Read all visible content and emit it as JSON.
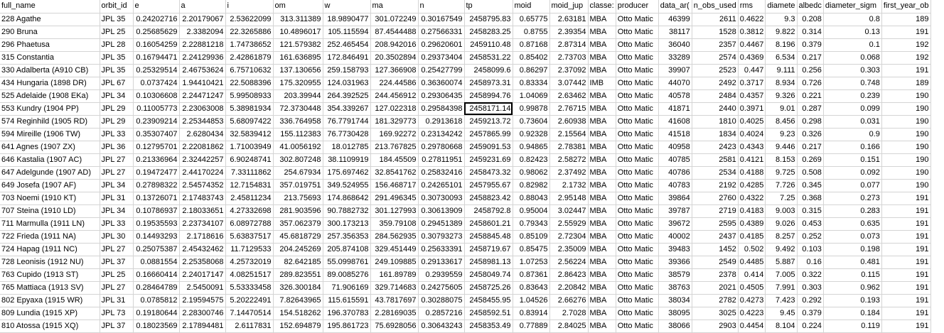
{
  "sheet": {
    "headers": [
      "full_name",
      "orbit_id",
      "e",
      "a",
      "i",
      "om",
      "w",
      "ma",
      "n",
      "tp",
      "moid",
      "moid_jup",
      "classes",
      "producer",
      "data_arc",
      "n_obs_used",
      "rms",
      "diameter",
      "albedo",
      "diameter_sigma",
      "first_year_obs"
    ],
    "header_display": [
      "full_name",
      "orbit_id",
      "e",
      "a",
      "i",
      "om",
      "w",
      "ma",
      "n",
      "tp",
      "moid",
      "moid_jup",
      "classe:",
      "producer",
      "data_ar(",
      "n_obs_used",
      "rms",
      "diamete",
      "albedc",
      "diameter_sigm",
      "first_year_ob"
    ],
    "selected_cell": {
      "row": 7,
      "col": 9
    },
    "rows": [
      [
        "228 Agathe",
        "JPL 35",
        "0.24202716",
        "2.20179067",
        "2.53622099",
        "313.311389",
        "18.9890477",
        "301.072249",
        "0.30167549",
        "2458795.83",
        "0.65775",
        "2.63181",
        "MBA",
        "Otto Matic",
        "46399",
        "2611",
        "0.4622",
        "9.3",
        "0.208",
        "0.8",
        "189"
      ],
      [
        "290 Bruna",
        "JPL 25",
        "0.25685629",
        "2.3382094",
        "22.3265886",
        "10.4896017",
        "105.115594",
        "87.4544488",
        "0.27566331",
        "2458283.25",
        "0.8755",
        "2.39354",
        "MBA",
        "Otto Matic",
        "38117",
        "1528",
        "0.3812",
        "9.822",
        "0.314",
        "0.13",
        "191"
      ],
      [
        "296 Phaetusa",
        "JPL 28",
        "0.16054259",
        "2.22881218",
        "1.74738652",
        "121.579382",
        "252.465454",
        "208.942016",
        "0.29620601",
        "2459110.48",
        "0.87168",
        "2.87314",
        "MBA",
        "Otto Matic",
        "36040",
        "2357",
        "0.4467",
        "8.196",
        "0.379",
        "0.1",
        "192"
      ],
      [
        "315 Constantia",
        "JPL 35",
        "0.16794471",
        "2.24129936",
        "2.42861879",
        "161.636895",
        "172.846491",
        "20.3502894",
        "0.29373404",
        "2458531.22",
        "0.85402",
        "2.73703",
        "MBA",
        "Otto Matic",
        "33289",
        "2574",
        "0.4369",
        "6.534",
        "0.217",
        "0.068",
        "192"
      ],
      [
        "330 Adalberta (A910 CB)",
        "JPL 35",
        "0.25329514",
        "2.46753624",
        "6.75710632",
        "137.130656",
        "259.158793",
        "127.366908",
        "0.25427799",
        "2458099.6",
        "0.86297",
        "2.37092",
        "MBA",
        "Otto Matic",
        "39907",
        "2523",
        "0.447",
        "9.111",
        "0.256",
        "0.303",
        "191"
      ],
      [
        "434 Hungaria (1898 DR)",
        "JPL 67",
        "0.0737424",
        "1.94410421",
        "22.5088396",
        "175.320955",
        "124.031963",
        "224.44586",
        "0.36360074",
        "2458973.31",
        "0.83334",
        "3.07442",
        "IMB",
        "Otto Matic",
        "44070",
        "2492",
        "0.3717",
        "8.934",
        "0.726",
        "0.748",
        "189"
      ],
      [
        "525 Adelaide (1908 EKa)",
        "JPL 34",
        "0.10306608",
        "2.24471247",
        "5.99508933",
        "203.39944",
        "264.392525",
        "244.456912",
        "0.29306435",
        "2458994.76",
        "1.04069",
        "2.63462",
        "MBA",
        "Otto Matic",
        "40578",
        "2484",
        "0.4357",
        "9.326",
        "0.221",
        "0.239",
        "190"
      ],
      [
        "553 Kundry (1904 PP)",
        "JPL 29",
        "0.11005773",
        "2.23063008",
        "5.38981934",
        "72.3730448",
        "354.339267",
        "127.022318",
        "0.29584398",
        "2458171.14",
        "0.99878",
        "2.76715",
        "MBA",
        "Otto Matic",
        "41871",
        "2440",
        "0.3971",
        "9.01",
        "0.287",
        "0.099",
        "190"
      ],
      [
        "574 Reginhild (1905 RD)",
        "JPL 29",
        "0.23909214",
        "2.25344853",
        "5.68097422",
        "336.764958",
        "76.7791744",
        "181.329773",
        "0.2913618",
        "2459213.72",
        "0.73604",
        "2.60938",
        "MBA",
        "Otto Matic",
        "41608",
        "1810",
        "0.4025",
        "8.456",
        "0.298",
        "0.031",
        "190"
      ],
      [
        "594 Mireille (1906 TW)",
        "JPL 33",
        "0.35307407",
        "2.6280434",
        "32.5839412",
        "155.112383",
        "76.7730428",
        "169.92272",
        "0.23134242",
        "2457865.99",
        "0.92328",
        "2.15564",
        "MBA",
        "Otto Matic",
        "41518",
        "1834",
        "0.4024",
        "9.23",
        "0.326",
        "0.9",
        "190"
      ],
      [
        "641 Agnes (1907 ZX)",
        "JPL 36",
        "0.12795701",
        "2.22081862",
        "1.71003949",
        "41.0056192",
        "18.012785",
        "213.767825",
        "0.29780668",
        "2459091.53",
        "0.94865",
        "2.78381",
        "MBA",
        "Otto Matic",
        "40958",
        "2423",
        "0.4343",
        "9.446",
        "0.217",
        "0.166",
        "190"
      ],
      [
        "646 Kastalia (1907 AC)",
        "JPL 27",
        "0.21336964",
        "2.32442257",
        "6.90248741",
        "302.807248",
        "38.1109919",
        "184.45509",
        "0.27811951",
        "2459231.69",
        "0.82423",
        "2.58272",
        "MBA",
        "Otto Matic",
        "40785",
        "2581",
        "0.4121",
        "8.153",
        "0.269",
        "0.151",
        "190"
      ],
      [
        "647 Adelgunde (1907 AD)",
        "JPL 27",
        "0.19472477",
        "2.44170224",
        "7.33111862",
        "254.67934",
        "175.697462",
        "32.8541762",
        "0.25832416",
        "2458473.32",
        "0.98062",
        "2.37492",
        "MBA",
        "Otto Matic",
        "40786",
        "2534",
        "0.4188",
        "9.725",
        "0.508",
        "0.092",
        "190"
      ],
      [
        "649 Josefa (1907 AF)",
        "JPL 34",
        "0.27898322",
        "2.54574352",
        "12.7154831",
        "357.019751",
        "349.524955",
        "156.468717",
        "0.24265101",
        "2457955.67",
        "0.82982",
        "2.1732",
        "MBA",
        "Otto Matic",
        "40783",
        "2192",
        "0.4285",
        "7.726",
        "0.345",
        "0.077",
        "190"
      ],
      [
        "703 Noemi (1910 KT)",
        "JPL 31",
        "0.13726071",
        "2.17483743",
        "2.45811234",
        "213.75693",
        "174.868642",
        "291.496345",
        "0.30730093",
        "2458823.42",
        "0.88043",
        "2.95148",
        "MBA",
        "Otto Matic",
        "39864",
        "2760",
        "0.4322",
        "7.25",
        "0.368",
        "0.273",
        "191"
      ],
      [
        "707 Steina (1910 LD)",
        "JPL 34",
        "0.10786937",
        "2.18033651",
        "4.27332698",
        "281.903596",
        "90.7882732",
        "301.127993",
        "0.30613909",
        "2458792.8",
        "0.95004",
        "3.02447",
        "MBA",
        "Otto Matic",
        "39787",
        "2719",
        "0.4183",
        "9.003",
        "0.315",
        "0.283",
        "191"
      ],
      [
        "711 Marmulla (1911 LN)",
        "JPL 33",
        "0.19535593",
        "2.23734107",
        "6.08972788",
        "357.062379",
        "300.173213",
        "359.79108",
        "0.29451389",
        "2458601.21",
        "0.79343",
        "2.55929",
        "MBA",
        "Otto Matic",
        "39672",
        "2595",
        "0.4389",
        "9.026",
        "0.453",
        "0.635",
        "191"
      ],
      [
        "722 Frieda (1911 NA)",
        "JPL 30",
        "0.14493293",
        "2.1718616",
        "5.63837517",
        "45.6818729",
        "257.356353",
        "284.562935",
        "0.30793273",
        "2458845.48",
        "0.85109",
        "2.72304",
        "MBA",
        "Otto Matic",
        "40002",
        "2437",
        "0.4185",
        "8.257",
        "0.252",
        "0.073",
        "191"
      ],
      [
        "724 Hapag (1911 NC)",
        "JPL 27",
        "0.25075387",
        "2.45432462",
        "11.7129533",
        "204.245269",
        "205.874108",
        "329.451449",
        "0.25633391",
        "2458719.67",
        "0.85475",
        "2.35009",
        "MBA",
        "Otto Matic",
        "39483",
        "1452",
        "0.502",
        "9.492",
        "0.103",
        "0.198",
        "191"
      ],
      [
        "728 Leonisis (1912 NU)",
        "JPL 37",
        "0.0881554",
        "2.25358068",
        "4.25732019",
        "82.642185",
        "55.0998761",
        "249.109885",
        "0.29133617",
        "2458981.13",
        "1.07253",
        "2.56224",
        "MBA",
        "Otto Matic",
        "39366",
        "2549",
        "0.4485",
        "5.887",
        "0.16",
        "0.481",
        "191"
      ],
      [
        "763 Cupido (1913 ST)",
        "JPL 25",
        "0.16660414",
        "2.24017147",
        "4.08251517",
        "289.823551",
        "89.0085276",
        "161.89789",
        "0.2939559",
        "2458049.74",
        "0.87361",
        "2.86423",
        "MBA",
        "Otto Matic",
        "38579",
        "2378",
        "0.414",
        "7.005",
        "0.322",
        "0.115",
        "191"
      ],
      [
        "765 Mattiaca (1913 SV)",
        "JPL 27",
        "0.28464789",
        "2.5450091",
        "5.53333458",
        "326.300184",
        "71.906169",
        "329.714683",
        "0.24275605",
        "2458725.26",
        "0.83643",
        "2.20842",
        "MBA",
        "Otto Matic",
        "38763",
        "2021",
        "0.4505",
        "7.991",
        "0.303",
        "0.962",
        "191"
      ],
      [
        "802 Epyaxa (1915 WR)",
        "JPL 31",
        "0.0785812",
        "2.19594575",
        "5.20222491",
        "7.82643965",
        "115.615591",
        "43.7817697",
        "0.30288075",
        "2458455.95",
        "1.04526",
        "2.66276",
        "MBA",
        "Otto Matic",
        "38034",
        "2782",
        "0.4273",
        "7.423",
        "0.292",
        "0.193",
        "191"
      ],
      [
        "809 Lundia (1915 XP)",
        "JPL 73",
        "0.19180644",
        "2.28300746",
        "7.14470514",
        "154.518262",
        "196.370783",
        "2.28169035",
        "0.2857216",
        "2458592.51",
        "0.83914",
        "2.7028",
        "MBA",
        "Otto Matic",
        "38095",
        "3025",
        "0.4223",
        "9.45",
        "0.379",
        "0.184",
        "191"
      ],
      [
        "810 Atossa (1915 XQ)",
        "JPL 37",
        "0.18023569",
        "2.17894481",
        "2.6117831",
        "152.694879",
        "195.861723",
        "75.6928056",
        "0.30643243",
        "2458353.49",
        "0.77889",
        "2.84025",
        "MBA",
        "Otto Matic",
        "38066",
        "2903",
        "0.4454",
        "8.104",
        "0.224",
        "0.119",
        "191"
      ]
    ]
  }
}
